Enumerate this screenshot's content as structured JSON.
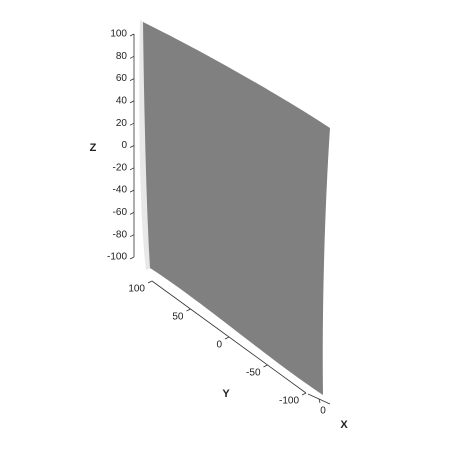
{
  "chart_data": {
    "type": "surface",
    "color": "#808080",
    "xlabel": "X",
    "ylabel": "Y",
    "zlabel": "Z",
    "xlim": [
      -1,
      1
    ],
    "xticks": [
      0
    ],
    "ylim": [
      -100,
      100
    ],
    "yticks": [
      100,
      50,
      0,
      -50,
      -100
    ],
    "zlim": [
      -100,
      100
    ],
    "zticks": [
      100,
      80,
      60,
      40,
      20,
      0,
      -20,
      -40,
      -60,
      -80,
      -100
    ]
  }
}
